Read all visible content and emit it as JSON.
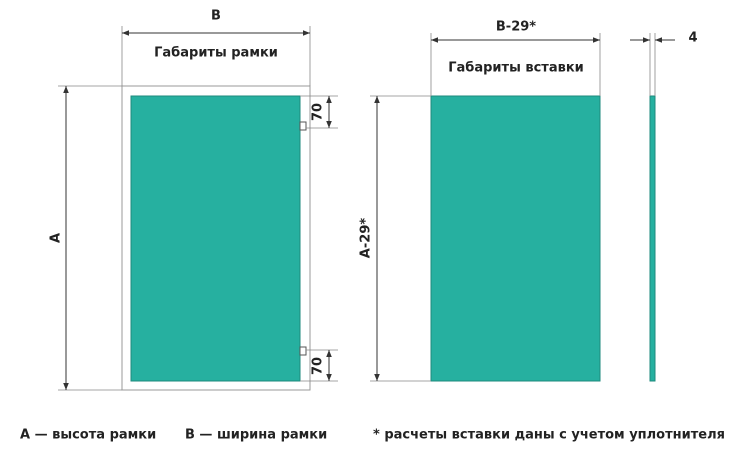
{
  "frame": {
    "width_label": "В",
    "title": "Габариты рамки",
    "height_label": "А",
    "hinge_top_offset": 70,
    "hinge_bottom_offset": 70
  },
  "insert": {
    "width_label": "В-29*",
    "title": "Габариты вставки",
    "height_label": "А-29*",
    "thickness": 4
  },
  "legend": [
    "А — высота рамки",
    "В — ширина рамки",
    "* расчеты вставки даны с учетом уплотнителя"
  ]
}
